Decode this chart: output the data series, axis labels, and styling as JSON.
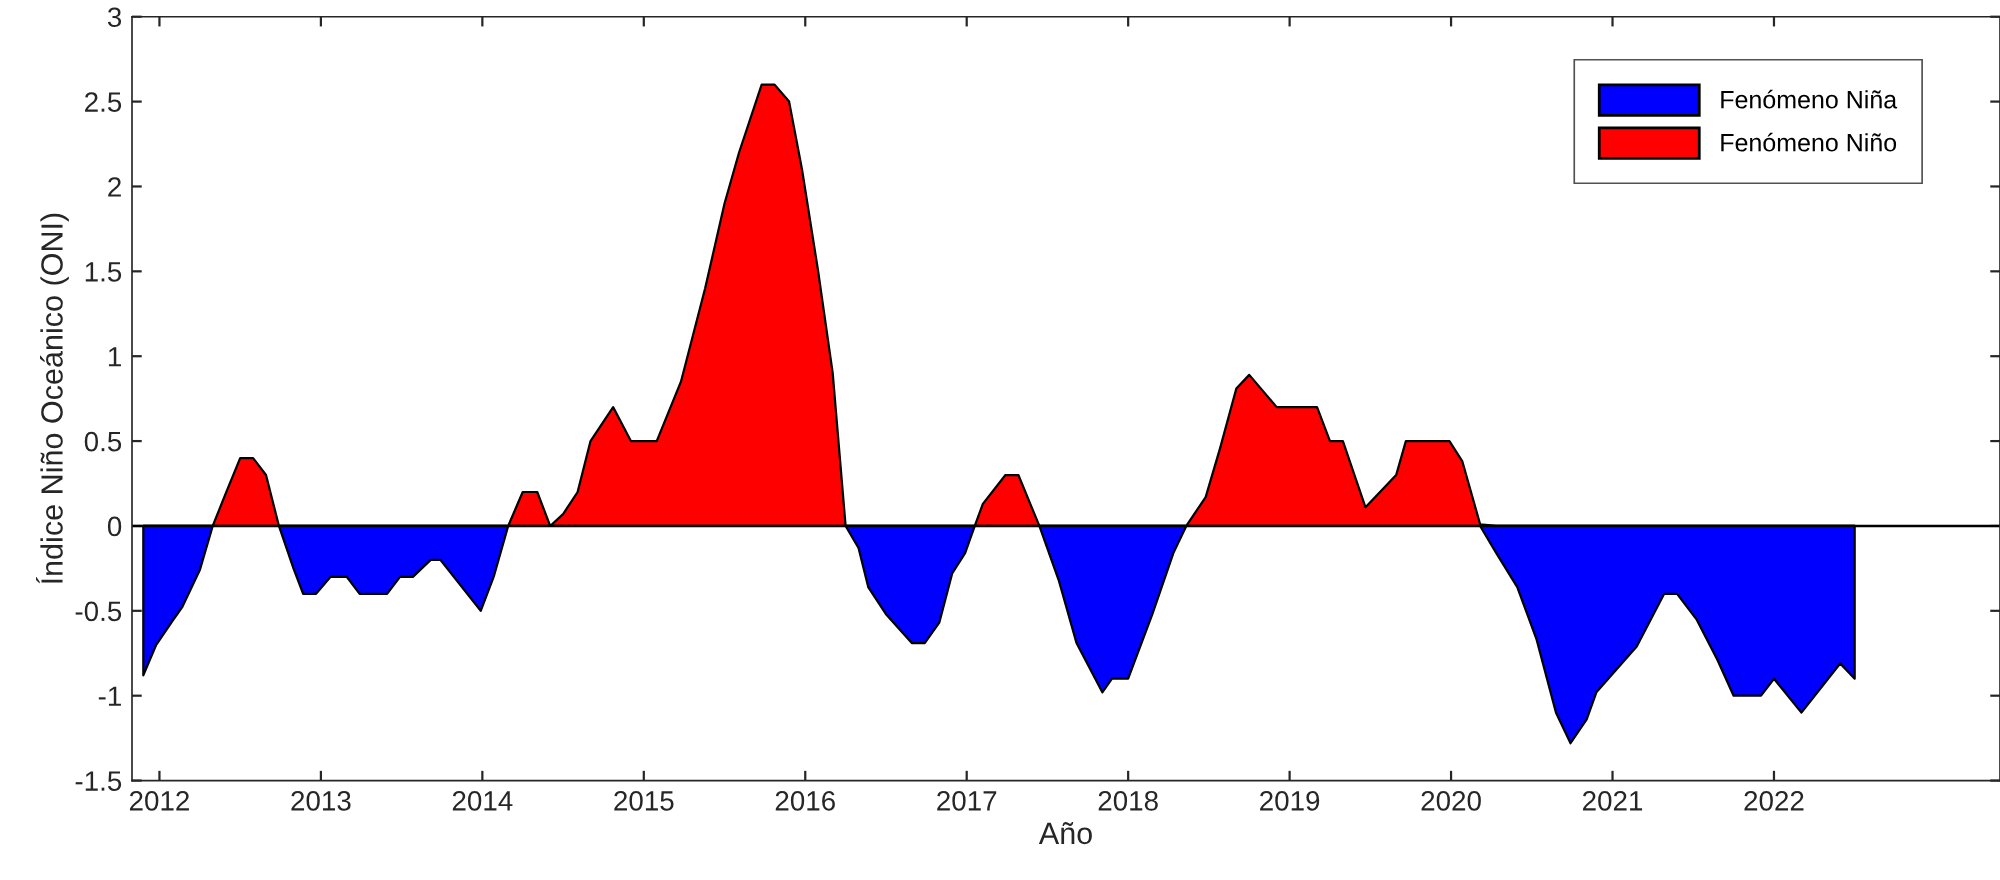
{
  "chart_data": {
    "type": "area",
    "xlabel": "Año",
    "ylabel": "Índice Niño Oceánico (ONI)",
    "x": [
      2011.9,
      2011.98,
      2012.08,
      2012.14,
      2012.25,
      2012.33,
      2012.41,
      2012.5,
      2012.58,
      2012.66,
      2012.74,
      2012.83,
      2012.89,
      2012.97,
      2013.06,
      2013.16,
      2013.24,
      2013.41,
      2013.49,
      2013.57,
      2013.68,
      2013.74,
      2013.99,
      2014.07,
      2014.16,
      2014.25,
      2014.34,
      2014.42,
      2014.5,
      2014.59,
      2014.67,
      2014.81,
      2014.92,
      2015.08,
      2015.23,
      2015.38,
      2015.5,
      2015.59,
      2015.73,
      2015.81,
      2015.9,
      2015.98,
      2016.08,
      2016.17,
      2016.25,
      2016.33,
      2016.39,
      2016.5,
      2016.66,
      2016.74,
      2016.83,
      2016.91,
      2016.99,
      2017.05,
      2017.1,
      2017.24,
      2017.32,
      2017.45,
      2017.57,
      2017.68,
      2017.84,
      2017.9,
      2018.0,
      2018.15,
      2018.28,
      2018.36,
      2018.48,
      2018.57,
      2018.67,
      2018.75,
      2018.92,
      2019.17,
      2019.25,
      2019.33,
      2019.47,
      2019.66,
      2019.72,
      2019.99,
      2020.07,
      2020.18,
      2020.28,
      2020.41,
      2020.53,
      2020.65,
      2020.74,
      2020.84,
      2020.9,
      2021.15,
      2021.32,
      2021.4,
      2021.52,
      2021.65,
      2021.75,
      2021.92,
      2022.0,
      2022.17,
      2022.41,
      2022.5
    ],
    "series": [
      {
        "name": "Fenómeno Niña",
        "color": "#0000ff",
        "values": [
          -0.88,
          -0.7,
          -0.56,
          -0.48,
          -0.26,
          0,
          0,
          0,
          0,
          0,
          0,
          -0.25,
          -0.4,
          -0.4,
          -0.3,
          -0.3,
          -0.4,
          -0.4,
          -0.3,
          -0.3,
          -0.2,
          -0.2,
          -0.5,
          -0.3,
          0,
          0,
          0,
          0,
          0,
          0,
          0,
          0,
          0,
          0,
          0,
          0,
          0,
          0,
          0,
          0,
          0,
          0,
          0,
          0,
          0,
          -0.13,
          -0.36,
          -0.52,
          -0.69,
          -0.69,
          -0.57,
          -0.28,
          -0.16,
          0,
          0,
          0,
          0,
          0,
          -0.32,
          -0.69,
          -0.98,
          -0.9,
          -0.9,
          -0.52,
          -0.16,
          0,
          0,
          0,
          0,
          0,
          0,
          0,
          0,
          0,
          0,
          0,
          0,
          0,
          0,
          0,
          -0.16,
          -0.36,
          -0.67,
          -1.1,
          -1.28,
          -1.14,
          -0.98,
          -0.71,
          -0.4,
          -0.4,
          -0.55,
          -0.79,
          -1.0,
          -1.0,
          -0.9,
          -1.1,
          -0.81,
          -0.9
        ]
      },
      {
        "name": "Fenómeno Niño",
        "color": "#ff0000",
        "values": [
          0,
          0,
          0,
          0,
          0,
          0,
          0.19,
          0.4,
          0.4,
          0.3,
          0,
          0,
          0,
          0,
          0,
          0,
          0,
          0,
          0,
          0,
          0,
          0,
          0,
          0,
          0,
          0.2,
          0.2,
          0,
          0.07,
          0.2,
          0.5,
          0.7,
          0.5,
          0.5,
          0.85,
          1.4,
          1.9,
          2.2,
          2.6,
          2.6,
          2.5,
          2.1,
          1.5,
          0.9,
          0,
          0,
          0,
          0,
          0,
          0,
          0,
          0,
          0,
          0,
          0.13,
          0.3,
          0.3,
          0,
          0,
          0,
          0,
          0,
          0,
          0,
          0,
          0,
          0.17,
          0.46,
          0.81,
          0.89,
          0.7,
          0.7,
          0.5,
          0.5,
          0.11,
          0.3,
          0.5,
          0.5,
          0.38,
          0.01,
          0,
          0,
          0,
          0,
          0,
          0,
          0,
          0,
          0,
          0,
          0,
          0,
          0,
          0,
          0,
          0,
          0,
          0
        ]
      }
    ],
    "xlim": [
      2011.83,
      2023.4
    ],
    "xticks": [
      2012,
      2013,
      2014,
      2015,
      2016,
      2017,
      2018,
      2019,
      2020,
      2021,
      2022
    ],
    "ylim": [
      -1.5,
      3
    ],
    "yticks": [
      -1.5,
      -1,
      -0.5,
      0,
      0.5,
      1,
      1.5,
      2,
      2.5,
      3
    ],
    "ref_lines": [
      {
        "axis": "y",
        "value": 0,
        "color": "#000000"
      }
    ],
    "legend": "top right",
    "grid": false
  }
}
